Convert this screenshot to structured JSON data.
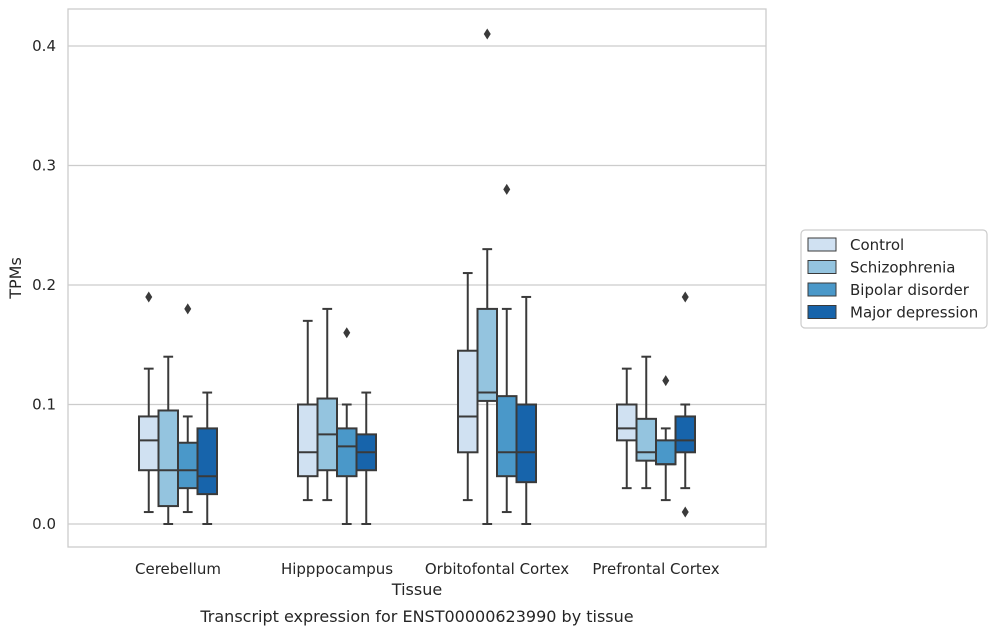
{
  "caption": "Transcript expression for ENST00000623990 by tissue",
  "chart_data": {
    "type": "box",
    "xlabel": "Tissue",
    "ylabel": "TPMs",
    "ylim": [
      -0.02,
      0.43
    ],
    "yticks": [
      0.0,
      0.1,
      0.2,
      0.3,
      0.4
    ],
    "ytick_labels": [
      "0.0",
      "0.1",
      "0.2",
      "0.3",
      "0.4"
    ],
    "grid": "horizontal",
    "legend_position": "right",
    "categories": [
      "Cerebellum",
      "Hipppocampus",
      "Orbitofontal Cortex",
      "Prefrontal Cortex"
    ],
    "series": [
      {
        "name": "Control",
        "color": "#d0e1f2",
        "boxes": [
          {
            "whislo": 0.01,
            "q1": 0.045,
            "med": 0.07,
            "q3": 0.09,
            "whishi": 0.13,
            "fliers": [
              0.19
            ]
          },
          {
            "whislo": 0.02,
            "q1": 0.04,
            "med": 0.06,
            "q3": 0.1,
            "whishi": 0.17,
            "fliers": []
          },
          {
            "whislo": 0.02,
            "q1": 0.06,
            "med": 0.09,
            "q3": 0.145,
            "whishi": 0.21,
            "fliers": []
          },
          {
            "whislo": 0.03,
            "q1": 0.07,
            "med": 0.08,
            "q3": 0.1,
            "whishi": 0.13,
            "fliers": []
          }
        ]
      },
      {
        "name": "Schizophrenia",
        "color": "#94c4df",
        "boxes": [
          {
            "whislo": 0.0,
            "q1": 0.015,
            "med": 0.045,
            "q3": 0.095,
            "whishi": 0.14,
            "fliers": []
          },
          {
            "whislo": 0.02,
            "q1": 0.045,
            "med": 0.075,
            "q3": 0.105,
            "whishi": 0.18,
            "fliers": []
          },
          {
            "whislo": 0.0,
            "q1": 0.103,
            "med": 0.11,
            "q3": 0.18,
            "whishi": 0.23,
            "fliers": [
              0.41
            ]
          },
          {
            "whislo": 0.03,
            "q1": 0.053,
            "med": 0.06,
            "q3": 0.088,
            "whishi": 0.14,
            "fliers": []
          }
        ]
      },
      {
        "name": "Bipolar disorder",
        "color": "#4a98c9",
        "boxes": [
          {
            "whislo": 0.01,
            "q1": 0.03,
            "med": 0.045,
            "q3": 0.068,
            "whishi": 0.09,
            "fliers": [
              0.18
            ]
          },
          {
            "whislo": 0.0,
            "q1": 0.04,
            "med": 0.065,
            "q3": 0.08,
            "whishi": 0.1,
            "fliers": [
              0.16
            ]
          },
          {
            "whislo": 0.01,
            "q1": 0.04,
            "med": 0.06,
            "q3": 0.107,
            "whishi": 0.18,
            "fliers": [
              0.28
            ]
          },
          {
            "whislo": 0.02,
            "q1": 0.05,
            "med": 0.05,
            "q3": 0.07,
            "whishi": 0.08,
            "fliers": [
              0.12
            ]
          }
        ]
      },
      {
        "name": "Major depression",
        "color": "#1764ab",
        "boxes": [
          {
            "whislo": 0.0,
            "q1": 0.025,
            "med": 0.04,
            "q3": 0.08,
            "whishi": 0.11,
            "fliers": []
          },
          {
            "whislo": 0.0,
            "q1": 0.045,
            "med": 0.06,
            "q3": 0.075,
            "whishi": 0.11,
            "fliers": []
          },
          {
            "whislo": 0.0,
            "q1": 0.035,
            "med": 0.06,
            "q3": 0.1,
            "whishi": 0.19,
            "fliers": []
          },
          {
            "whislo": 0.03,
            "q1": 0.06,
            "med": 0.07,
            "q3": 0.09,
            "whishi": 0.1,
            "fliers": [
              0.19,
              0.01
            ]
          }
        ]
      }
    ]
  }
}
